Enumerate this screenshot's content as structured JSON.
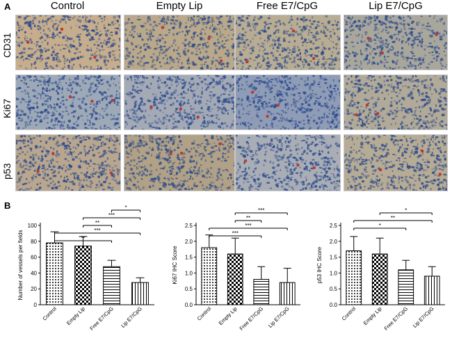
{
  "panel_a": {
    "letter": "A",
    "column_headers": [
      "Control",
      "Empty Lip",
      "Free E7/CpG",
      "Lip E7/CpG"
    ],
    "row_headers": [
      "CD31",
      "Ki67",
      "p53"
    ],
    "colors": {
      "nuclei": "#2b4a8c",
      "stroma": "#d9c7a8",
      "marker": "#c0392b"
    }
  },
  "panel_b": {
    "letter": "B"
  },
  "chart_data": [
    {
      "type": "bar",
      "categories": [
        "Control",
        "Empty Lip",
        "Free E7/CpG",
        "Lip E7/CpG"
      ],
      "values": [
        78,
        74,
        48,
        28
      ],
      "errors": [
        14,
        12,
        8,
        6
      ],
      "ylabel": "Number of vessels per fields",
      "ylim": [
        0,
        100
      ],
      "yticks": [
        0,
        20,
        40,
        60,
        80,
        100
      ],
      "patterns": [
        "dots",
        "checker",
        "hlines",
        "vlines"
      ],
      "significance": [
        {
          "from": 2,
          "to": 3,
          "label": "*"
        },
        {
          "from": 1,
          "to": 3,
          "label": "***"
        },
        {
          "from": 1,
          "to": 2,
          "label": "**"
        },
        {
          "from": 0,
          "to": 3,
          "label": "***"
        },
        {
          "from": 0,
          "to": 2,
          "label": "**"
        }
      ]
    },
    {
      "type": "bar",
      "categories": [
        "Control",
        "Empty Lip",
        "Free E7/CpG",
        "Lip E7/CpG"
      ],
      "values": [
        1.8,
        1.6,
        0.8,
        0.7
      ],
      "errors": [
        0.4,
        0.5,
        0.4,
        0.45
      ],
      "ylabel": "Ki67 IHC Score",
      "ylim": [
        0,
        2.5
      ],
      "yticks": [
        0.0,
        0.5,
        1.0,
        1.5,
        2.0,
        2.5
      ],
      "patterns": [
        "dots",
        "checker",
        "hlines",
        "vlines"
      ],
      "significance": [
        {
          "from": 1,
          "to": 3,
          "label": "***"
        },
        {
          "from": 1,
          "to": 2,
          "label": "**"
        },
        {
          "from": 0,
          "to": 3,
          "label": "***"
        },
        {
          "from": 0,
          "to": 2,
          "label": "***"
        }
      ]
    },
    {
      "type": "bar",
      "categories": [
        "Control",
        "Empty Lip",
        "Free E7/CpG",
        "Lip E7/CpG"
      ],
      "values": [
        1.7,
        1.6,
        1.1,
        0.9
      ],
      "errors": [
        0.45,
        0.5,
        0.3,
        0.3
      ],
      "ylabel": "p53 IHC Score",
      "ylim": [
        0,
        2.5
      ],
      "yticks": [
        0.0,
        0.5,
        1.0,
        1.5,
        2.0,
        2.5
      ],
      "patterns": [
        "dots",
        "checker",
        "hlines",
        "vlines"
      ],
      "significance": [
        {
          "from": 1,
          "to": 3,
          "label": "*"
        },
        {
          "from": 0,
          "to": 3,
          "label": "**"
        },
        {
          "from": 0,
          "to": 2,
          "label": "*"
        }
      ]
    }
  ]
}
